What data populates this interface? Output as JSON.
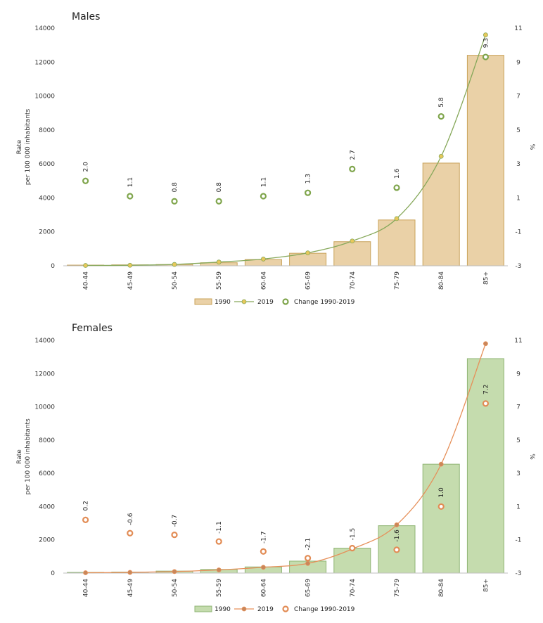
{
  "charts": [
    {
      "colors": {
        "bar_fill": "#ead1a7",
        "bar_stroke": "#c9a35a",
        "line": "#86a85a",
        "line_marker": "#e8c85a",
        "change": "#7fa54c"
      }
    },
    {
      "colors": {
        "bar_fill": "#c5dcae",
        "bar_stroke": "#8fb574",
        "line": "#e6905a",
        "line_marker": "#c9875a",
        "change": "#e28c55"
      }
    }
  ],
  "chart_data": [
    {
      "type": "bar",
      "title": "Males",
      "ylabel": [
        "Rate",
        "per 100 000 inhabitants"
      ],
      "y2label": "%",
      "categories": [
        "40-44",
        "45-49",
        "50-54",
        "55-59",
        "60-64",
        "65-69",
        "70-74",
        "75-79",
        "80-84",
        "85+"
      ],
      "ylim": [
        0,
        14000
      ],
      "yticks": [
        "0",
        "2000",
        "4000",
        "6000",
        "8000",
        "10000",
        "12000",
        "14000"
      ],
      "y2lim": [
        -3,
        11
      ],
      "y2ticks": [
        "-3",
        "-1",
        "1",
        "3",
        "5",
        "7",
        "9",
        "11"
      ],
      "legend": [
        "1990",
        "2019",
        "Change 1990-2019"
      ],
      "series": [
        {
          "name": "1990",
          "type": "bar",
          "values": [
            40,
            55,
            75,
            180,
            370,
            740,
            1420,
            2700,
            6050,
            12400
          ]
        },
        {
          "name": "2019",
          "type": "line",
          "values": [
            20,
            30,
            80,
            220,
            400,
            760,
            1460,
            2780,
            6450,
            13600
          ]
        },
        {
          "name": "Change 1990-2019",
          "type": "scatter",
          "axis": "right",
          "values": [
            2.0,
            1.1,
            0.8,
            0.8,
            1.1,
            1.3,
            2.7,
            1.6,
            5.8,
            9.3
          ],
          "labels": [
            "2.0",
            "1.1",
            "0.8",
            "0.8",
            "1.1",
            "1.3",
            "2.7",
            "1.6",
            "5.8",
            "9.3"
          ]
        }
      ]
    },
    {
      "type": "bar",
      "title": "Females",
      "ylabel": [
        "Rate",
        "per 100 000 inhabitants"
      ],
      "y2label": "%",
      "categories": [
        "40-44",
        "45-49",
        "50-54",
        "55-59",
        "60-64",
        "65-69",
        "70-74",
        "75-79",
        "80-84",
        "85+"
      ],
      "ylim": [
        0,
        14000
      ],
      "yticks": [
        "0",
        "2000",
        "4000",
        "6000",
        "8000",
        "10000",
        "12000",
        "14000"
      ],
      "y2lim": [
        -3,
        11
      ],
      "y2ticks": [
        "-3",
        "-1",
        "1",
        "3",
        "5",
        "7",
        "9",
        "11"
      ],
      "legend": [
        "1990",
        "2019",
        "Change 1990-2019"
      ],
      "series": [
        {
          "name": "1990",
          "type": "bar",
          "values": [
            40,
            60,
            120,
            220,
            370,
            720,
            1500,
            2850,
            6550,
            12900
          ]
        },
        {
          "name": "2019",
          "type": "line",
          "values": [
            20,
            40,
            90,
            190,
            350,
            580,
            1450,
            2900,
            6550,
            13800
          ]
        },
        {
          "name": "Change 1990-2019",
          "type": "scatter",
          "axis": "right",
          "values": [
            0.2,
            -0.6,
            -0.7,
            -1.1,
            -1.7,
            -2.1,
            -1.5,
            -1.6,
            1.0,
            7.2
          ],
          "labels": [
            "0.2",
            "-0.6",
            "-0.7",
            "-1.1",
            "-1.7",
            "-2.1",
            "-1.5",
            "-1.6",
            "1.0",
            "7.2"
          ]
        }
      ]
    }
  ]
}
